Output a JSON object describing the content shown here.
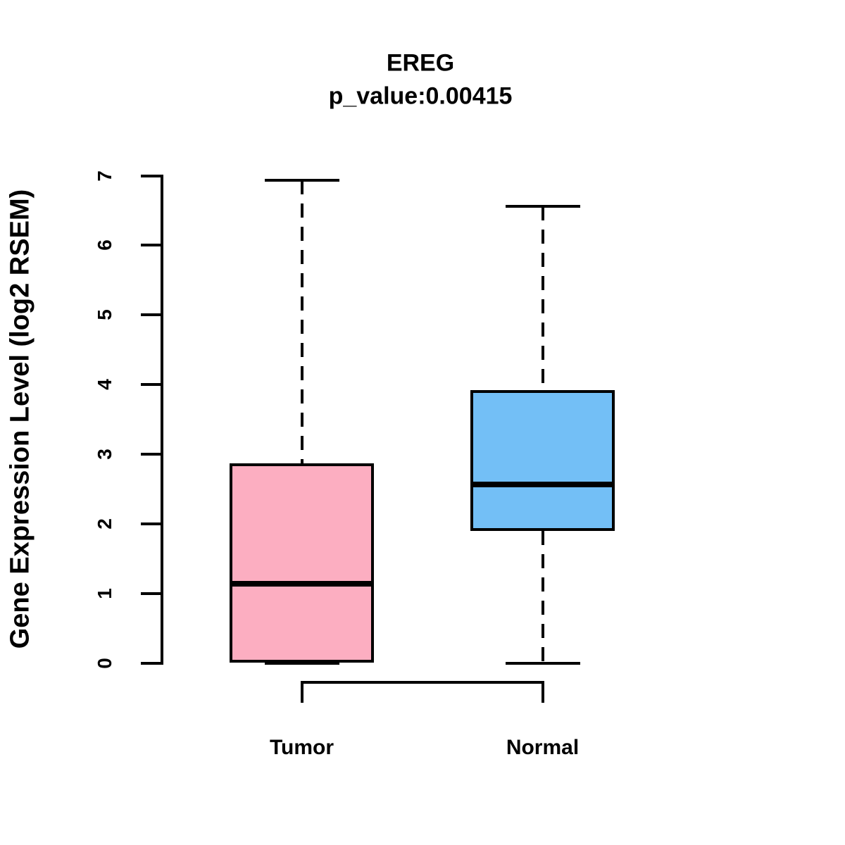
{
  "chart_data": {
    "type": "boxplot",
    "title": "EREG",
    "subtitle": "p_value:0.00415",
    "p_value": "0.00415",
    "ylabel": "Gene Expression Level (log2 RSEM)",
    "xlabel": "",
    "ylim": [
      0,
      7
    ],
    "yticks": [
      0,
      1,
      2,
      3,
      4,
      5,
      6,
      7
    ],
    "grid": false,
    "legend": null,
    "line_color": "#000000",
    "background": "#FFFFFF",
    "groups": [
      {
        "label": "Tumor",
        "color": "#FCAEC1",
        "whisker_low": 0,
        "q1": 0,
        "median": 1.14,
        "q3": 2.87,
        "whisker_high": 6.93
      },
      {
        "label": "Normal",
        "color": "#73BFF6",
        "whisker_low": 0,
        "q1": 1.9,
        "median": 2.56,
        "q3": 3.92,
        "whisker_high": 6.56
      }
    ]
  }
}
